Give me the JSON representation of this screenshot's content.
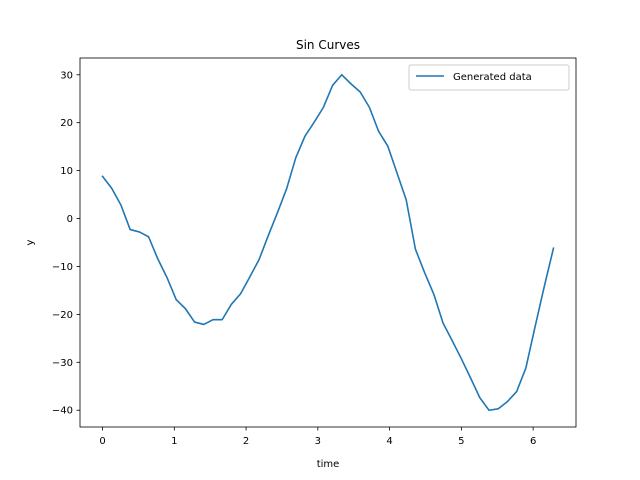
{
  "chart_data": {
    "type": "line",
    "title": "Sin Curves",
    "xlabel": "time",
    "ylabel": "y",
    "xlim": [
      -0.3142,
      6.5973
    ],
    "ylim": [
      -43.5,
      33.5
    ],
    "xticks": [
      0,
      1,
      2,
      3,
      4,
      5,
      6
    ],
    "yticks": [
      -40,
      -30,
      -20,
      -10,
      0,
      10,
      20,
      30
    ],
    "grid": false,
    "legend_position": "top-right",
    "series": [
      {
        "name": "Generated data",
        "color": "#1f77b4",
        "x": [
          0.0,
          0.1282,
          0.2565,
          0.3847,
          0.5129,
          0.6411,
          0.7694,
          0.8976,
          1.0258,
          1.1541,
          1.2823,
          1.4105,
          1.5387,
          1.667,
          1.7952,
          1.9234,
          2.0517,
          2.1799,
          2.3081,
          2.4363,
          2.5646,
          2.6928,
          2.821,
          2.9493,
          3.0775,
          3.2057,
          3.3339,
          3.4622,
          3.5904,
          3.7186,
          3.8468,
          3.9751,
          4.1033,
          4.2315,
          4.3598,
          4.488,
          4.6162,
          4.7444,
          4.8727,
          5.0009,
          5.1291,
          5.2574,
          5.3856,
          5.5138,
          5.642,
          5.7703,
          5.8985,
          6.0267,
          6.155,
          6.2832
        ],
        "y": [
          8.8,
          6.3,
          2.8,
          -2.3,
          -2.8,
          -3.8,
          -8.4,
          -12.3,
          -16.9,
          -18.8,
          -21.6,
          -22.1,
          -21.1,
          -21.1,
          -17.9,
          -15.7,
          -12.2,
          -8.6,
          -3.6,
          1.2,
          6.2,
          12.7,
          17.2,
          20.1,
          23.2,
          27.8,
          30.0,
          28.1,
          26.4,
          23.2,
          18.2,
          15.1,
          9.5,
          3.9,
          -6.4,
          -11.3,
          -15.8,
          -21.8,
          -25.5,
          -29.3,
          -33.3,
          -37.4,
          -40.0,
          -39.7,
          -38.2,
          -36.1,
          -31.2,
          -22.6,
          -14.2,
          -6.2
        ]
      }
    ]
  }
}
